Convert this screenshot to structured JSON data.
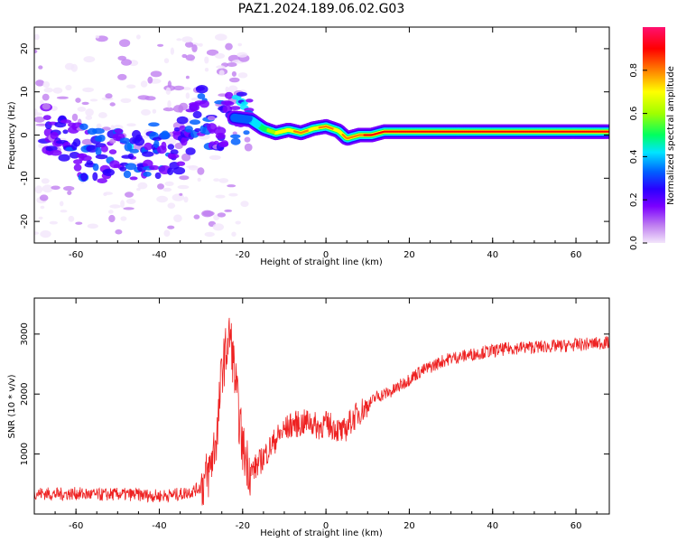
{
  "figure": {
    "title": "PAZ1.2024.189.06.02.G03"
  },
  "colors": {
    "snr_line": "#ee2222",
    "axis": "#000000",
    "colormap": [
      "#f3e6fb",
      "#c080f0",
      "#7b00ff",
      "#2a00ff",
      "#0060ff",
      "#00e5ff",
      "#00ff60",
      "#a0ff00",
      "#ffff00",
      "#ff8000",
      "#ff0000",
      "#ff1070"
    ]
  },
  "chart_data": [
    {
      "type": "heatmap",
      "xlabel": "Height of straight line (km)",
      "ylabel": "Frequency (Hz)",
      "xlim": [
        -70,
        68
      ],
      "ylim": [
        -25,
        25
      ],
      "xticks": [
        -60,
        -40,
        -20,
        0,
        20,
        40,
        60
      ],
      "yticks": [
        -20,
        -10,
        0,
        10,
        20
      ],
      "colorbar": {
        "label": "Normalized spectral amplitude",
        "range": [
          0,
          1
        ],
        "ticks": [
          0.0,
          0.2,
          0.4,
          0.6,
          0.8
        ]
      },
      "ridge": [
        {
          "x": -68,
          "freq": 2.5,
          "amp": 0.25
        },
        {
          "x": -64,
          "freq": 1.0,
          "amp": 0.25
        },
        {
          "x": -62,
          "freq": -3.0,
          "amp": 0.3
        },
        {
          "x": -58,
          "freq": -4.0,
          "amp": 0.3
        },
        {
          "x": -55,
          "freq": -5.0,
          "amp": 0.35
        },
        {
          "x": -52,
          "freq": -4.5,
          "amp": 0.3
        },
        {
          "x": -48,
          "freq": -5.0,
          "amp": 0.35
        },
        {
          "x": -44,
          "freq": -5.5,
          "amp": 0.35
        },
        {
          "x": -42,
          "freq": -3.0,
          "amp": 0.3
        },
        {
          "x": -38,
          "freq": -4.0,
          "amp": 0.3
        },
        {
          "x": -35,
          "freq": -2.0,
          "amp": 0.3
        },
        {
          "x": -30,
          "freq": 6.5,
          "amp": 0.35
        },
        {
          "x": -27,
          "freq": 1.0,
          "amp": 0.3
        },
        {
          "x": -22,
          "freq": 4.0,
          "amp": 0.35
        },
        {
          "x": -18,
          "freq": 3.5,
          "amp": 0.4
        },
        {
          "x": -15,
          "freq": 1.5,
          "amp": 0.55
        },
        {
          "x": -12,
          "freq": 0.5,
          "amp": 0.7
        },
        {
          "x": -9,
          "freq": 1.2,
          "amp": 0.75
        },
        {
          "x": -6,
          "freq": 0.5,
          "amp": 0.8
        },
        {
          "x": -3,
          "freq": 1.5,
          "amp": 0.75
        },
        {
          "x": 0,
          "freq": 2.0,
          "amp": 0.8
        },
        {
          "x": 3,
          "freq": 1.0,
          "amp": 0.75
        },
        {
          "x": 5,
          "freq": -0.8,
          "amp": 0.8
        },
        {
          "x": 8,
          "freq": 0.0,
          "amp": 0.85
        },
        {
          "x": 11,
          "freq": 0.0,
          "amp": 0.9
        },
        {
          "x": 14,
          "freq": 0.8,
          "amp": 0.95
        },
        {
          "x": 30,
          "freq": 0.8,
          "amp": 0.95
        },
        {
          "x": 50,
          "freq": 0.8,
          "amp": 0.95
        },
        {
          "x": 68,
          "freq": 0.8,
          "amp": 0.9
        }
      ]
    },
    {
      "type": "line",
      "xlabel": "Height of straight line (km)",
      "ylabel": "SNR (10 * v/v)",
      "xlim": [
        -70,
        68
      ],
      "ylim": [
        0,
        3600
      ],
      "xticks": [
        -60,
        -40,
        -20,
        0,
        20,
        40,
        60
      ],
      "yticks": [
        1000,
        2000,
        3000
      ],
      "series": [
        {
          "x": [
            -70,
            -65,
            -60,
            -55,
            -50,
            -45,
            -40,
            -35,
            -32,
            -30,
            -28,
            -26,
            -25,
            -24,
            -23,
            -22,
            -21,
            -20,
            -18,
            -16,
            -14,
            -12,
            -10,
            -8,
            -6,
            -4,
            -2,
            0,
            2,
            4,
            6,
            8,
            10,
            12,
            14,
            16,
            18,
            20,
            22,
            25,
            28,
            30,
            32,
            35,
            38,
            40,
            44,
            48,
            52,
            56,
            60,
            64,
            68
          ],
          "y": [
            350,
            330,
            340,
            320,
            330,
            320,
            300,
            330,
            380,
            450,
            700,
            1400,
            2400,
            2700,
            3000,
            2400,
            1700,
            1100,
            700,
            850,
            1050,
            1250,
            1400,
            1500,
            1500,
            1550,
            1450,
            1500,
            1450,
            1350,
            1550,
            1700,
            1800,
            1950,
            2000,
            2050,
            2150,
            2250,
            2350,
            2450,
            2550,
            2600,
            2620,
            2660,
            2700,
            2720,
            2760,
            2780,
            2790,
            2800,
            2820,
            2840,
            2860
          ]
        }
      ]
    }
  ]
}
